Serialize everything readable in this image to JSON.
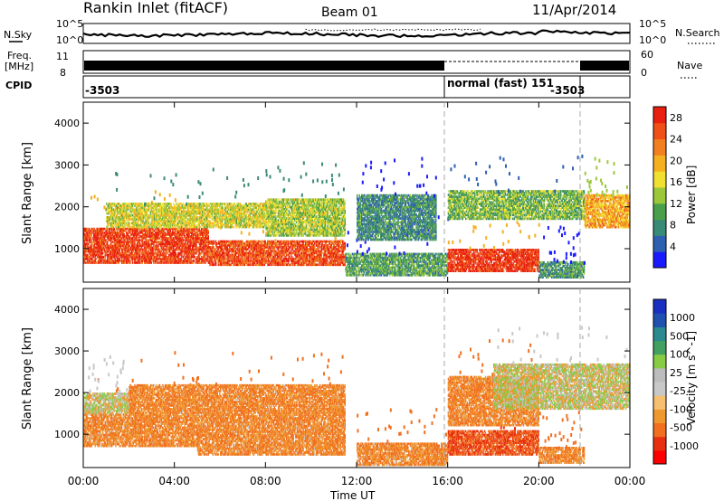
{
  "header": {
    "station": "Rankin Inlet (fitACF)",
    "beam": "Beam 01",
    "date": "11/Apr/2014"
  },
  "summary_panels": {
    "nsky": {
      "label": "N.Sky",
      "ticks": [
        "10^5",
        "10^0"
      ]
    },
    "nsearch": {
      "label": "N.Search",
      "ticks": [
        "10^5",
        "10^0"
      ]
    },
    "freq": {
      "label_line1": "Freq.",
      "label_line2": "[MHz]",
      "ticks": [
        "11",
        "8"
      ]
    },
    "nave": {
      "label": "Nave",
      "ticks": [
        "60",
        "0"
      ]
    },
    "cpid": {
      "label": "CPID",
      "segments": [
        {
          "text": "-3503"
        },
        {
          "text": "normal (fast) 151"
        },
        {
          "text": "-3503"
        }
      ]
    }
  },
  "colors": {
    "power_scale": [
      "#1a1aff",
      "#2f5fb0",
      "#3a8a78",
      "#4aa04a",
      "#9bc83a",
      "#f0e030",
      "#f5b020",
      "#f08020",
      "#f05018",
      "#e82010"
    ],
    "velocity_scale": [
      "#ff0000",
      "#e83010",
      "#f07020",
      "#f09830",
      "#f5c070",
      "#c8c8c8",
      "#bcbcbc",
      "#88cc44",
      "#44a060",
      "#2a8a90",
      "#2050b0",
      "#1a30c0"
    ]
  },
  "chart_data": [
    {
      "type": "heatmap",
      "panel": "power",
      "ylabel": "Slant Range [km]",
      "ylim": [
        200,
        4500
      ],
      "yticks": [
        "1000",
        "2000",
        "3000",
        "4000"
      ],
      "xlim": [
        0,
        24
      ],
      "xticks": [
        "00:00",
        "04:00",
        "08:00",
        "12:00",
        "16:00",
        "20:00",
        "00:00"
      ],
      "colorbar": {
        "label": "Power [dB]",
        "ticks": [
          "4",
          "8",
          "12",
          "16",
          "20",
          "24",
          "28"
        ],
        "range": [
          0,
          30
        ]
      },
      "bands": [
        {
          "t0": 0,
          "t1": 5.5,
          "r0": 650,
          "r1": 1500,
          "value": 27
        },
        {
          "t0": 5.5,
          "t1": 11.5,
          "r0": 600,
          "r1": 1200,
          "value": 26
        },
        {
          "t0": 1,
          "t1": 8,
          "r0": 1500,
          "r1": 2100,
          "value": 16
        },
        {
          "t0": 8,
          "t1": 11.5,
          "r0": 1300,
          "r1": 2200,
          "value": 14
        },
        {
          "t0": 11.5,
          "t1": 16,
          "r0": 350,
          "r1": 900,
          "value": 10
        },
        {
          "t0": 12,
          "t1": 15.5,
          "r0": 1200,
          "r1": 2300,
          "value": 8
        },
        {
          "t0": 16,
          "t1": 20,
          "r0": 450,
          "r1": 1000,
          "value": 28
        },
        {
          "t0": 16,
          "t1": 22,
          "r0": 1700,
          "r1": 2400,
          "value": 12
        },
        {
          "t0": 22,
          "t1": 24,
          "r0": 1500,
          "r1": 2300,
          "value": 20
        },
        {
          "t0": 20,
          "t1": 22,
          "r0": 300,
          "r1": 700,
          "value": 9
        }
      ]
    },
    {
      "type": "heatmap",
      "panel": "velocity",
      "ylabel": "Slant Range [km]",
      "xlabel": "Time UT",
      "ylim": [
        200,
        4500
      ],
      "yticks": [
        "1000",
        "2000",
        "3000",
        "4000"
      ],
      "xlim": [
        0,
        24
      ],
      "xticks": [
        "00:00",
        "04:00",
        "08:00",
        "12:00",
        "16:00",
        "20:00",
        "00:00"
      ],
      "colorbar": {
        "label": "Velocity [m s^-1]",
        "ticks": [
          "1000",
          "500",
          "100",
          "25",
          "-25",
          "-100",
          "-500",
          "-1000"
        ]
      },
      "bands": [
        {
          "t0": 0,
          "t1": 5,
          "r0": 700,
          "r1": 1500,
          "value": -100
        },
        {
          "t0": 0,
          "t1": 2,
          "r0": 1500,
          "r1": 2000,
          "value": 0
        },
        {
          "t0": 5,
          "t1": 11.5,
          "r0": 500,
          "r1": 1500,
          "value": -100
        },
        {
          "t0": 2,
          "t1": 11.5,
          "r0": 1500,
          "r1": 2200,
          "value": -100
        },
        {
          "t0": 12,
          "t1": 16,
          "r0": 250,
          "r1": 800,
          "value": -100
        },
        {
          "t0": 16,
          "t1": 20,
          "r0": 500,
          "r1": 1100,
          "value": -500
        },
        {
          "t0": 16,
          "t1": 20,
          "r0": 1200,
          "r1": 2400,
          "value": -100
        },
        {
          "t0": 18,
          "t1": 24,
          "r0": 1600,
          "r1": 2700,
          "value": 0
        },
        {
          "t0": 20,
          "t1": 22,
          "r0": 300,
          "r1": 700,
          "value": -100
        }
      ]
    }
  ],
  "axes": {
    "slant_range_label": "Slant Range [km]",
    "time_label": "Time UT"
  }
}
